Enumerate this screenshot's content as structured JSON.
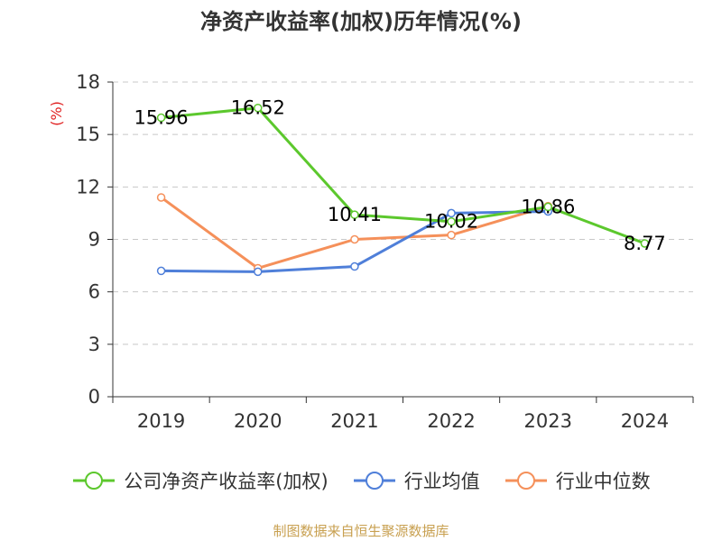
{
  "title": "净资产收益率(加权)历年情况(%)",
  "source_note": "制图数据来自恒生聚源数据库",
  "chart_data": {
    "type": "line",
    "title": "净资产收益率(加权)历年情况(%)",
    "ylabel": "(%)",
    "xlabel": "",
    "categories": [
      "2019",
      "2020",
      "2021",
      "2022",
      "2023",
      "2024"
    ],
    "ylim": [
      0,
      18
    ],
    "yticks": [
      0,
      3,
      6,
      9,
      12,
      15,
      18
    ],
    "grid": true,
    "legend_position": "bottom",
    "series": [
      {
        "name": "公司净资产收益率(加权)",
        "color": "#5cc82d",
        "values": [
          15.96,
          16.52,
          10.41,
          10.02,
          10.86,
          8.77
        ],
        "labels": [
          "15.96",
          "16.52",
          "10.41",
          "10.02",
          "10.86",
          "8.77"
        ]
      },
      {
        "name": "行业均值",
        "color": "#4f7fd9",
        "values": [
          7.2,
          7.15,
          7.45,
          10.5,
          10.6,
          null
        ]
      },
      {
        "name": "行业中位数",
        "color": "#f5905a",
        "values": [
          11.4,
          7.35,
          9.0,
          9.25,
          10.9,
          null
        ]
      }
    ]
  }
}
